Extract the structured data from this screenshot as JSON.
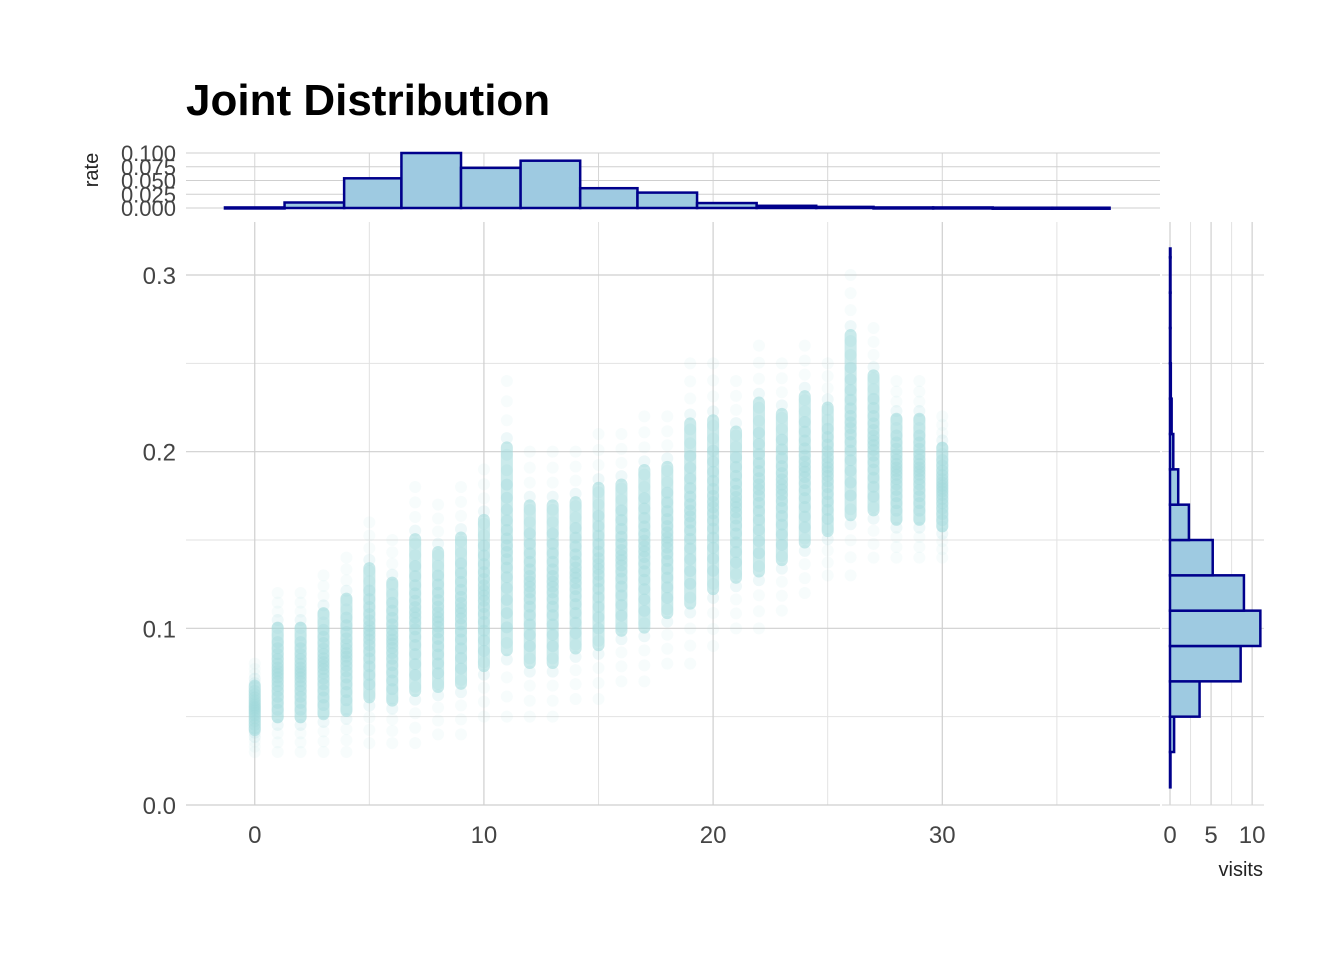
{
  "chart_data": [
    {
      "type": "scatter",
      "title": "Joint Distribution",
      "point_color": "#9ED8DB",
      "xlim": [
        -3,
        39.5
      ],
      "ylim": [
        0,
        0.33
      ],
      "x_ticks": [
        0,
        10,
        20,
        30
      ],
      "x_tick_labels": [
        "0",
        "10",
        "20",
        "30"
      ],
      "y_ticks": [
        0,
        0.1,
        0.2,
        0.3
      ],
      "y_tick_labels": [
        "0.0",
        "0.1",
        "0.2",
        "0.3"
      ],
      "grid": true,
      "columns": [
        {
          "x": 0,
          "y_range": [
            0.03,
            0.08
          ]
        },
        {
          "x": 1,
          "y_range": [
            0.03,
            0.12
          ]
        },
        {
          "x": 2,
          "y_range": [
            0.03,
            0.12
          ]
        },
        {
          "x": 3,
          "y_range": [
            0.03,
            0.13
          ]
        },
        {
          "x": 4,
          "y_range": [
            0.03,
            0.14
          ]
        },
        {
          "x": 5,
          "y_range": [
            0.035,
            0.16
          ]
        },
        {
          "x": 6,
          "y_range": [
            0.035,
            0.15
          ]
        },
        {
          "x": 7,
          "y_range": [
            0.035,
            0.18
          ]
        },
        {
          "x": 8,
          "y_range": [
            0.04,
            0.17
          ]
        },
        {
          "x": 9,
          "y_range": [
            0.04,
            0.18
          ]
        },
        {
          "x": 10,
          "y_range": [
            0.05,
            0.19
          ]
        },
        {
          "x": 11,
          "y_range": [
            0.05,
            0.24
          ]
        },
        {
          "x": 12,
          "y_range": [
            0.05,
            0.2
          ]
        },
        {
          "x": 13,
          "y_range": [
            0.05,
            0.2
          ]
        },
        {
          "x": 14,
          "y_range": [
            0.06,
            0.2
          ]
        },
        {
          "x": 15,
          "y_range": [
            0.06,
            0.21
          ]
        },
        {
          "x": 16,
          "y_range": [
            0.07,
            0.21
          ]
        },
        {
          "x": 17,
          "y_range": [
            0.07,
            0.22
          ]
        },
        {
          "x": 18,
          "y_range": [
            0.08,
            0.22
          ]
        },
        {
          "x": 19,
          "y_range": [
            0.08,
            0.25
          ]
        },
        {
          "x": 20,
          "y_range": [
            0.09,
            0.25
          ]
        },
        {
          "x": 21,
          "y_range": [
            0.1,
            0.24
          ]
        },
        {
          "x": 22,
          "y_range": [
            0.1,
            0.26
          ]
        },
        {
          "x": 23,
          "y_range": [
            0.11,
            0.25
          ]
        },
        {
          "x": 24,
          "y_range": [
            0.12,
            0.26
          ]
        },
        {
          "x": 25,
          "y_range": [
            0.13,
            0.25
          ]
        },
        {
          "x": 26,
          "y_range": [
            0.13,
            0.3
          ]
        },
        {
          "x": 27,
          "y_range": [
            0.14,
            0.27
          ]
        },
        {
          "x": 28,
          "y_range": [
            0.14,
            0.24
          ]
        },
        {
          "x": 29,
          "y_range": [
            0.14,
            0.24
          ]
        },
        {
          "x": 30,
          "y_range": [
            0.14,
            0.22
          ]
        }
      ]
    },
    {
      "type": "bar",
      "orientation": "vertical",
      "ylabel": "rate",
      "fill": "#9ECAE1",
      "stroke": "#00008B",
      "ylim": [
        0,
        0.1
      ],
      "y_ticks": [
        0,
        0.025,
        0.05,
        0.075,
        0.1
      ],
      "y_tick_labels": [
        "0.000",
        "0.025",
        "0.050",
        "0.075",
        "0.100"
      ],
      "bins": [
        {
          "x0": -1.3,
          "x1": 1.3,
          "value": 0.001
        },
        {
          "x0": 1.3,
          "x1": 3.9,
          "value": 0.01
        },
        {
          "x0": 3.9,
          "x1": 6.4,
          "value": 0.054
        },
        {
          "x0": 6.4,
          "x1": 9.0,
          "value": 0.1
        },
        {
          "x0": 9.0,
          "x1": 11.6,
          "value": 0.073
        },
        {
          "x0": 11.6,
          "x1": 14.2,
          "value": 0.086
        },
        {
          "x0": 14.2,
          "x1": 16.7,
          "value": 0.036
        },
        {
          "x0": 16.7,
          "x1": 19.3,
          "value": 0.028
        },
        {
          "x0": 19.3,
          "x1": 21.9,
          "value": 0.009
        },
        {
          "x0": 21.9,
          "x1": 24.5,
          "value": 0.004
        },
        {
          "x0": 24.5,
          "x1": 27.0,
          "value": 0.002
        },
        {
          "x0": 27.0,
          "x1": 29.6,
          "value": 0.001
        },
        {
          "x0": 29.6,
          "x1": 32.2,
          "value": 0.001
        },
        {
          "x0": 32.2,
          "x1": 34.8,
          "value": 0.0005
        },
        {
          "x0": 34.8,
          "x1": 37.3,
          "value": 0.0005
        }
      ]
    },
    {
      "type": "bar",
      "orientation": "horizontal",
      "xlabel": "visits",
      "fill": "#9ECAE1",
      "stroke": "#00008B",
      "xlim": [
        0,
        11.2
      ],
      "x_ticks": [
        0,
        5,
        10
      ],
      "x_tick_labels": [
        "0",
        "5",
        "10"
      ],
      "bins": [
        {
          "y0": 0.01,
          "y1": 0.03,
          "value": 0.0
        },
        {
          "y0": 0.03,
          "y1": 0.05,
          "value": 0.5
        },
        {
          "y0": 0.05,
          "y1": 0.07,
          "value": 3.6
        },
        {
          "y0": 0.07,
          "y1": 0.09,
          "value": 8.6
        },
        {
          "y0": 0.09,
          "y1": 0.11,
          "value": 11.0
        },
        {
          "y0": 0.11,
          "y1": 0.13,
          "value": 9.0
        },
        {
          "y0": 0.13,
          "y1": 0.15,
          "value": 5.2
        },
        {
          "y0": 0.15,
          "y1": 0.17,
          "value": 2.3
        },
        {
          "y0": 0.17,
          "y1": 0.19,
          "value": 1.0
        },
        {
          "y0": 0.19,
          "y1": 0.21,
          "value": 0.4
        },
        {
          "y0": 0.21,
          "y1": 0.23,
          "value": 0.2
        },
        {
          "y0": 0.23,
          "y1": 0.25,
          "value": 0.1
        },
        {
          "y0": 0.25,
          "y1": 0.27,
          "value": 0.05
        },
        {
          "y0": 0.27,
          "y1": 0.29,
          "value": 0.05
        },
        {
          "y0": 0.29,
          "y1": 0.31,
          "value": 0.0
        },
        {
          "y0": 0.31,
          "y1": 0.315,
          "value": 0.0
        }
      ]
    }
  ]
}
